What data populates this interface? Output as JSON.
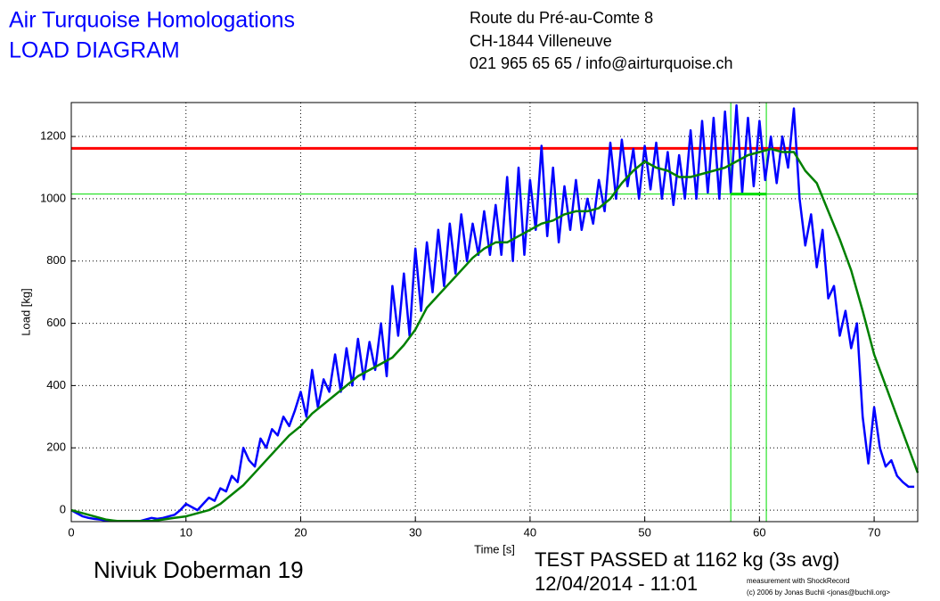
{
  "header": {
    "title": "Air Turquoise Homologations",
    "subtitle": "LOAD DIAGRAM",
    "address": [
      "Route du Pré-au-Comte 8",
      "CH-1844 Villeneuve",
      "021 965 65 65 / info@airturquoise.ch"
    ]
  },
  "chart_data": {
    "type": "line",
    "xlabel": "Time [s]",
    "ylabel": "Load [kg]",
    "xlim": [
      0,
      73.8
    ],
    "ylim": [
      -37,
      1309
    ],
    "xticks": [
      0,
      10,
      20,
      30,
      40,
      50,
      60,
      70
    ],
    "yticks": [
      0,
      200,
      400,
      600,
      800,
      1000,
      1200
    ],
    "grid": true,
    "reference_lines": [
      {
        "value": 1162,
        "color": "#ff0000"
      },
      {
        "value": 1015,
        "color": "#00dd00"
      }
    ],
    "vlines": [
      57.5,
      60.6
    ],
    "vline_color": "#00dd00",
    "series": [
      {
        "color": "#0000ff",
        "x": [
          0,
          0.5,
          1,
          1.5,
          2,
          2.5,
          3,
          3.5,
          4,
          4.5,
          5,
          5.5,
          6,
          6.5,
          7,
          7.5,
          8,
          8.5,
          9,
          9.5,
          10,
          10.5,
          11,
          11.5,
          12,
          12.5,
          13,
          13.5,
          14,
          14.5,
          15,
          15.5,
          16,
          16.5,
          17,
          17.5,
          18,
          18.5,
          19,
          19.5,
          20,
          20.5,
          21,
          21.5,
          22,
          22.5,
          23,
          23.5,
          24,
          24.5,
          25,
          25.5,
          26,
          26.5,
          27,
          27.5,
          28,
          28.5,
          29,
          29.5,
          30,
          30.5,
          31,
          31.5,
          32,
          32.5,
          33,
          33.5,
          34,
          34.5,
          35,
          35.5,
          36,
          36.5,
          37,
          37.5,
          38,
          38.5,
          39,
          39.5,
          40,
          40.5,
          41,
          41.5,
          42,
          42.5,
          43,
          43.5,
          44,
          44.5,
          45,
          45.5,
          46,
          46.5,
          47,
          47.5,
          48,
          48.5,
          49,
          49.5,
          50,
          50.5,
          51,
          51.5,
          52,
          52.5,
          53,
          53.5,
          54,
          54.5,
          55,
          55.5,
          56,
          56.5,
          57,
          57.5,
          58,
          58.5,
          59,
          59.5,
          60,
          60.5,
          61,
          61.5,
          62,
          62.5,
          63,
          63.5,
          64,
          64.5,
          65,
          65.5,
          66,
          66.5,
          67,
          67.5,
          68,
          68.5,
          69,
          69.5,
          70,
          70.5,
          71,
          71.5,
          72,
          72.5,
          73,
          73.5
        ],
        "values": [
          0,
          -10,
          -20,
          -25,
          -28,
          -30,
          -33,
          -35,
          -35,
          -35,
          -35,
          -35,
          -35,
          -30,
          -25,
          -28,
          -25,
          -20,
          -15,
          0,
          20,
          10,
          0,
          20,
          40,
          30,
          70,
          60,
          110,
          90,
          200,
          160,
          140,
          230,
          200,
          260,
          240,
          300,
          270,
          320,
          380,
          300,
          450,
          330,
          420,
          380,
          500,
          380,
          520,
          400,
          550,
          420,
          540,
          450,
          600,
          430,
          720,
          560,
          760,
          560,
          840,
          640,
          860,
          700,
          900,
          720,
          920,
          760,
          950,
          800,
          920,
          820,
          960,
          820,
          980,
          820,
          1070,
          800,
          1100,
          820,
          1060,
          900,
          1170,
          880,
          1100,
          860,
          1040,
          900,
          1060,
          900,
          1000,
          920,
          1060,
          960,
          1180,
          1000,
          1190,
          1040,
          1160,
          1000,
          1170,
          1030,
          1180,
          1000,
          1150,
          980,
          1140,
          1000,
          1220,
          1000,
          1250,
          1020,
          1260,
          1000,
          1280,
          1020,
          1300,
          1020,
          1260,
          1040,
          1250,
          1060,
          1200,
          1050,
          1200,
          1100,
          1290,
          1000,
          850,
          950,
          780,
          900,
          680,
          720,
          560,
          640,
          520,
          600,
          300,
          150,
          330,
          200,
          140,
          160,
          110,
          90,
          75,
          75
        ]
      },
      {
        "color": "#008000",
        "x": [
          0,
          1,
          2,
          3,
          4,
          5,
          6,
          7,
          8,
          9,
          10,
          11,
          12,
          13,
          14,
          15,
          16,
          17,
          18,
          19,
          20,
          21,
          22,
          23,
          24,
          25,
          26,
          27,
          28,
          29,
          30,
          31,
          32,
          33,
          34,
          35,
          36,
          37,
          38,
          39,
          40,
          41,
          42,
          43,
          44,
          45,
          46,
          47,
          48,
          49,
          50,
          51,
          52,
          53,
          54,
          55,
          56,
          57,
          58,
          59,
          60,
          61,
          62,
          63,
          64,
          65,
          66,
          67,
          68,
          69,
          70,
          71,
          72,
          73,
          73.8
        ],
        "values": [
          0,
          -10,
          -20,
          -30,
          -35,
          -35,
          -35,
          -35,
          -30,
          -25,
          -20,
          -10,
          0,
          20,
          50,
          80,
          120,
          160,
          200,
          240,
          270,
          310,
          340,
          370,
          400,
          430,
          450,
          470,
          490,
          530,
          580,
          650,
          690,
          730,
          770,
          810,
          840,
          860,
          860,
          880,
          900,
          920,
          930,
          950,
          960,
          960,
          970,
          1000,
          1050,
          1090,
          1120,
          1100,
          1090,
          1070,
          1070,
          1080,
          1090,
          1100,
          1120,
          1140,
          1150,
          1160,
          1150,
          1150,
          1090,
          1050,
          960,
          870,
          770,
          640,
          500,
          400,
          300,
          200,
          120
        ]
      }
    ]
  },
  "footer": {
    "name": "Niviuk Doberman 19",
    "result": "TEST PASSED at 1162 kg (3s avg)",
    "date": "12/04/2014 - 11:01",
    "credit": [
      "measurement with ShockRecord",
      "(c) 2006 by Jonas Buchli <jonas@buchli.org>"
    ]
  }
}
